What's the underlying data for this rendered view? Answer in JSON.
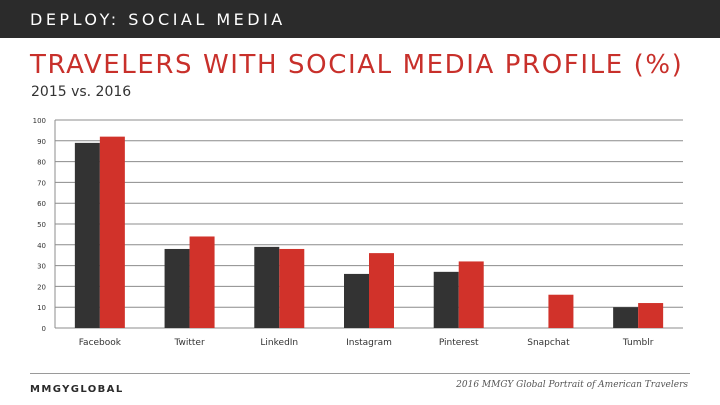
{
  "header": {
    "section_label": "DEPLOY: SOCIAL MEDIA"
  },
  "chart_data": {
    "type": "bar",
    "title": "TRAVELERS WITH SOCIAL MEDIA PROFILE (%)",
    "subtitle": "2015 vs. 2016",
    "categories": [
      "Facebook",
      "Twitter",
      "LinkedIn",
      "Instagram",
      "Pinterest",
      "Snapchat",
      "Tumblr"
    ],
    "series": [
      {
        "values": [
          89,
          38,
          39,
          26,
          27,
          null,
          10
        ],
        "color": "#333333"
      },
      {
        "values": [
          92,
          44,
          38,
          36,
          32,
          16,
          12
        ],
        "color": "#d1322a"
      }
    ],
    "ylim": [
      0,
      100
    ],
    "yticks": [
      0,
      10,
      20,
      30,
      40,
      50,
      60,
      70,
      80,
      90,
      100
    ],
    "grid": true,
    "legend": "none"
  },
  "footer": {
    "logo": "MMGYGLOBAL",
    "source": "2016 MMGY Global Portrait of American Travelers"
  }
}
